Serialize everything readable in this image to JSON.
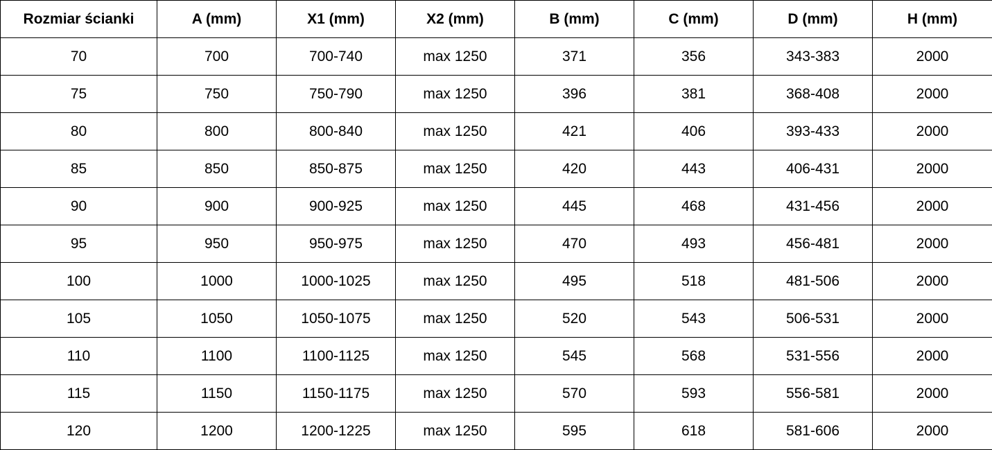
{
  "table": {
    "headers": [
      "Rozmiar ścianki",
      "A (mm)",
      "X1 (mm)",
      "X2 (mm)",
      "B (mm)",
      "C (mm)",
      "D (mm)",
      "H (mm)"
    ],
    "rows": [
      [
        "70",
        "700",
        "700-740",
        "max 1250",
        "371",
        "356",
        "343-383",
        "2000"
      ],
      [
        "75",
        "750",
        "750-790",
        "max 1250",
        "396",
        "381",
        "368-408",
        "2000"
      ],
      [
        "80",
        "800",
        "800-840",
        "max 1250",
        "421",
        "406",
        "393-433",
        "2000"
      ],
      [
        "85",
        "850",
        "850-875",
        "max 1250",
        "420",
        "443",
        "406-431",
        "2000"
      ],
      [
        "90",
        "900",
        "900-925",
        "max 1250",
        "445",
        "468",
        "431-456",
        "2000"
      ],
      [
        "95",
        "950",
        "950-975",
        "max 1250",
        "470",
        "493",
        "456-481",
        "2000"
      ],
      [
        "100",
        "1000",
        "1000-1025",
        "max 1250",
        "495",
        "518",
        "481-506",
        "2000"
      ],
      [
        "105",
        "1050",
        "1050-1075",
        "max 1250",
        "520",
        "543",
        "506-531",
        "2000"
      ],
      [
        "110",
        "1100",
        "1100-1125",
        "max 1250",
        "545",
        "568",
        "531-556",
        "2000"
      ],
      [
        "115",
        "1150",
        "1150-1175",
        "max 1250",
        "570",
        "593",
        "556-581",
        "2000"
      ],
      [
        "120",
        "1200",
        "1200-1225",
        "max 1250",
        "595",
        "618",
        "581-606",
        "2000"
      ]
    ]
  }
}
